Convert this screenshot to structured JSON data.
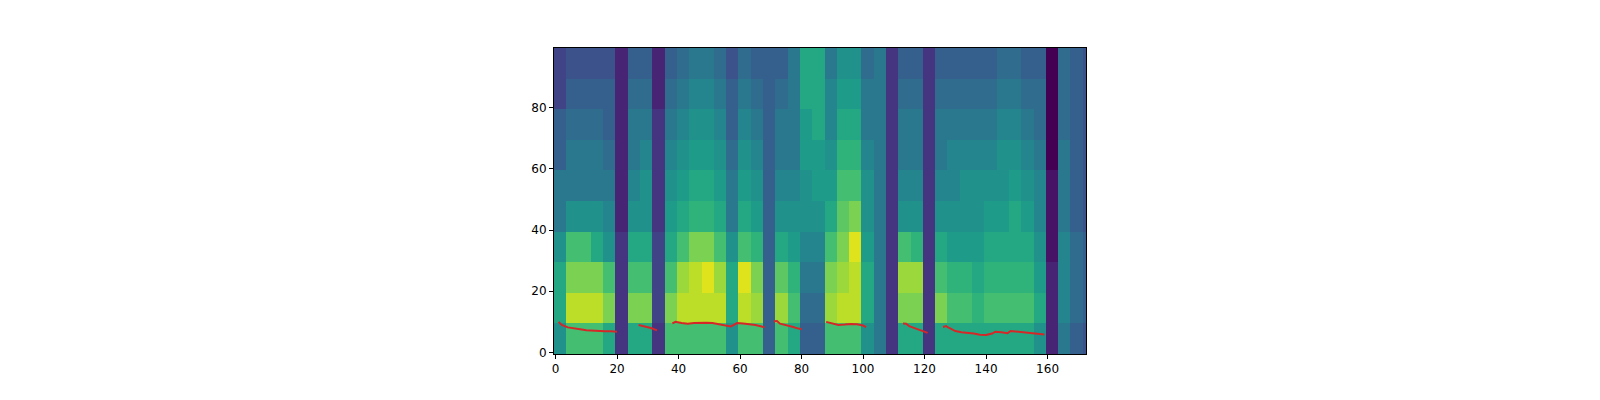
{
  "chart_data": {
    "type": "heatmap",
    "color": "Viridis",
    "x": [
      1.5,
      5.5,
      9.5,
      13.5,
      17.5,
      21.5,
      25.5,
      29.5,
      33.5,
      37.5,
      41.5,
      45.5,
      49.5,
      53.5,
      57.5,
      61.5,
      65.5,
      69.5,
      73.5,
      77.5,
      81.5,
      85.5,
      89.5,
      93.5,
      97.5,
      101.5,
      105.5,
      109.5,
      113.5,
      117.5,
      121.5,
      125.5,
      129.5,
      133.5,
      137.5,
      141.5,
      145.5,
      149.5,
      153.5,
      157.5,
      161.5,
      165.5,
      169.5,
      173.5
    ],
    "y": [
      4.5,
      14.5,
      24.5,
      34.5,
      44.5,
      54.5,
      64.5,
      74.5,
      84.5,
      94.5
    ],
    "cells": [
      [
        5,
        6,
        6,
        5,
        4,
        4,
        3,
        3,
        2,
        2
      ],
      [
        7,
        9,
        8,
        7,
        5,
        4,
        4,
        3.5,
        3,
        2.5
      ],
      [
        7,
        9,
        8,
        7,
        5,
        4,
        4,
        3.5,
        3,
        2.5
      ],
      [
        7,
        9,
        8,
        6,
        5,
        4,
        4,
        3.5,
        3,
        2.5
      ],
      [
        6,
        8,
        7,
        5,
        4.5,
        4,
        3.5,
        3,
        3,
        2.5
      ],
      [
        1.5,
        1.5,
        1.5,
        1.5,
        1,
        1,
        1,
        1,
        1,
        1
      ],
      [
        6,
        8,
        7,
        6,
        5,
        4.5,
        4,
        4,
        3.5,
        3
      ],
      [
        6,
        8,
        7,
        6,
        5,
        5,
        4.5,
        4,
        3.5,
        3
      ],
      [
        1.5,
        2,
        2,
        2,
        1.5,
        1.5,
        1.5,
        1.5,
        1,
        1
      ],
      [
        7,
        8,
        7,
        6,
        5.5,
        5,
        4.5,
        4,
        3.5,
        3
      ],
      [
        7,
        9,
        8.5,
        7,
        6,
        5.5,
        5,
        4.5,
        4,
        3.5
      ],
      [
        7,
        9,
        9,
        8,
        6.5,
        6,
        5.5,
        5,
        4.5,
        4
      ],
      [
        7,
        9,
        9.5,
        8,
        6.5,
        6,
        5.5,
        5,
        4.5,
        4
      ],
      [
        7,
        9,
        8.5,
        7,
        6,
        5.5,
        5,
        4.5,
        4,
        3.5
      ],
      [
        5,
        6,
        6,
        5,
        4,
        4,
        3.5,
        3,
        3,
        2.5
      ],
      [
        7,
        9,
        9.5,
        7,
        6,
        5.5,
        5,
        4.5,
        4,
        3.5
      ],
      [
        7,
        8.5,
        8,
        6.5,
        5.5,
        5,
        4.5,
        4,
        3.5,
        3
      ],
      [
        3,
        3,
        3,
        3,
        3,
        3,
        3,
        3,
        3,
        3
      ],
      [
        7,
        8.5,
        7.5,
        6,
        5,
        4.5,
        4,
        4,
        3.5,
        3
      ],
      [
        6,
        7,
        6.5,
        5.5,
        5,
        4.5,
        4,
        4,
        4,
        4
      ],
      [
        3,
        3.5,
        4,
        4.5,
        5,
        5,
        5.5,
        5.5,
        6,
        6
      ],
      [
        3,
        3.5,
        4,
        4.5,
        5,
        5.5,
        5.5,
        6,
        6,
        6
      ],
      [
        7,
        8.5,
        8,
        7,
        6,
        5.5,
        5,
        4.5,
        4.5,
        4
      ],
      [
        7,
        9,
        8.5,
        8,
        7.5,
        7,
        6.5,
        6,
        5.5,
        5
      ],
      [
        7,
        9,
        9,
        9.5,
        8,
        7,
        6.5,
        6,
        5.5,
        5
      ],
      [
        5,
        6,
        6,
        5.5,
        5,
        5,
        4.5,
        4,
        4,
        3.5
      ],
      [
        4,
        4,
        4,
        4,
        4,
        4,
        4,
        4,
        4,
        4
      ],
      [
        1.5,
        1.5,
        1.5,
        1.5,
        1.5,
        1.5,
        1.5,
        1.5,
        1.5,
        1.5
      ],
      [
        6,
        8,
        8.5,
        7,
        5,
        4.5,
        4,
        4,
        3.5,
        3
      ],
      [
        6,
        8,
        8.5,
        6.5,
        5,
        4.5,
        4,
        4,
        3.5,
        3
      ],
      [
        1.5,
        1.5,
        1.5,
        1.5,
        1.5,
        1.5,
        1.5,
        1.5,
        1.5,
        1.5
      ],
      [
        6,
        8,
        7,
        6,
        5,
        4.5,
        4,
        4,
        3.5,
        3
      ],
      [
        6,
        7,
        6.5,
        5.5,
        5,
        4.5,
        4.5,
        4,
        3.5,
        3
      ],
      [
        6,
        7,
        6.5,
        5.5,
        5,
        5,
        4.5,
        4,
        3.5,
        3
      ],
      [
        6,
        6.5,
        6,
        5.5,
        5,
        5,
        4.5,
        4,
        3.5,
        3
      ],
      [
        6,
        7,
        6.5,
        6,
        5.5,
        5,
        4.5,
        4,
        3.5,
        3
      ],
      [
        6,
        7,
        6.5,
        6,
        5.5,
        5,
        5,
        4.5,
        4,
        3.5
      ],
      [
        6,
        7,
        6.5,
        6,
        6,
        5.5,
        5,
        4.5,
        4,
        3.5
      ],
      [
        6,
        7,
        6.5,
        6,
        5.5,
        5,
        4.5,
        4,
        3.5,
        3
      ],
      [
        5,
        6,
        5.5,
        5,
        4.5,
        4.5,
        4,
        3.5,
        3.5,
        3
      ],
      [
        1,
        1,
        1,
        0.5,
        0.5,
        0.5,
        0,
        0,
        0,
        0
      ],
      [
        4,
        4.5,
        4.5,
        4.5,
        4,
        4,
        4,
        3.5,
        3.5,
        3.5
      ],
      [
        3,
        3.5,
        3.5,
        3.5,
        3,
        3,
        3,
        3,
        3,
        3
      ],
      [
        2.5,
        3,
        3,
        3,
        2.5,
        2.5,
        2.5,
        2.5,
        2.5,
        2.5
      ]
    ],
    "zlim": [
      0,
      10
    ],
    "series": [
      {
        "type": "line",
        "color": "#d62728",
        "x": [
          1,
          2,
          4,
          6,
          8,
          10,
          12,
          14,
          16,
          18,
          20,
          24,
          27,
          29,
          31,
          33,
          35,
          38,
          39,
          41,
          43,
          45,
          47,
          49,
          51,
          53,
          55,
          57,
          58,
          59,
          61,
          63,
          65,
          67,
          68,
          70,
          71,
          72,
          73,
          75,
          77,
          79,
          80,
          84,
          88,
          90,
          92,
          94,
          96,
          98,
          100,
          101,
          107,
          113,
          114,
          115,
          117,
          119,
          121,
          123,
          126,
          127,
          128,
          130,
          132,
          134,
          136,
          138,
          140,
          142,
          143,
          145,
          147,
          148,
          150,
          152,
          154,
          156,
          158,
          159
        ],
        "values": [
          10,
          9,
          8.2,
          8,
          7.6,
          7.3,
          7.1,
          7,
          6.9,
          6.9,
          6.8,
          null,
          9,
          8.6,
          8,
          7.2,
          null,
          9.5,
          10,
          9.6,
          9.4,
          9.6,
          9.7,
          9.7,
          9.6,
          9.3,
          8.8,
          8.5,
          9,
          9.6,
          9.5,
          9.3,
          9,
          8.5,
          8.2,
          null,
          10.2,
          10.3,
          9.4,
          9,
          8.4,
          7.8,
          7.6,
          null,
          10,
          9.6,
          9,
          9.1,
          9.3,
          9.2,
          8.8,
          8.3,
          null,
          9.5,
          9.4,
          8.6,
          7.8,
          7.2,
          6.4,
          null,
          8.3,
          8.6,
          8,
          7,
          6.6,
          6.5,
          6.2,
          5.8,
          5.7,
          6.2,
          6.8,
          6.6,
          6.3,
          7,
          6.8,
          6.8,
          6.5,
          6.3,
          6.1,
          5.9
        ]
      }
    ],
    "xlim": [
      -0.5,
      172.5
    ],
    "ylim": [
      -0.5,
      99.5
    ],
    "xticks": [
      0,
      20,
      40,
      60,
      80,
      100,
      120,
      140,
      160
    ],
    "yticks": [
      0,
      20,
      40,
      60,
      80
    ]
  }
}
